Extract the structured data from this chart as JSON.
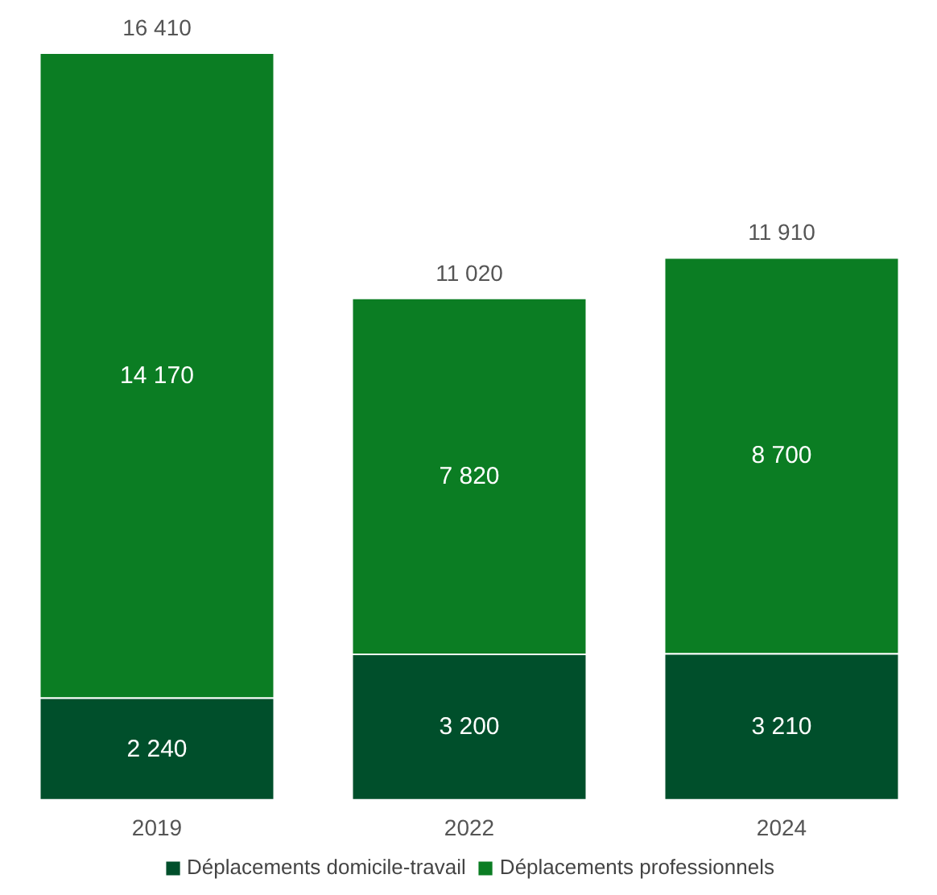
{
  "chart_data": {
    "type": "bar",
    "stacked": true,
    "categories": [
      "2019",
      "2022",
      "2024"
    ],
    "series": [
      {
        "name": "Déplacements domicile-travail",
        "color": "#004f2b",
        "values": [
          2240,
          3200,
          3210
        ],
        "value_labels": [
          "2 240",
          "3 200",
          "3 210"
        ]
      },
      {
        "name": "Déplacements professionnels",
        "color": "#0b7d23",
        "values": [
          14170,
          7820,
          8700
        ],
        "value_labels": [
          "14 170",
          "7 820",
          "8 700"
        ]
      }
    ],
    "totals": [
      "16 410",
      "11 020",
      "11 910"
    ],
    "legend": "bottom",
    "grid": false
  }
}
